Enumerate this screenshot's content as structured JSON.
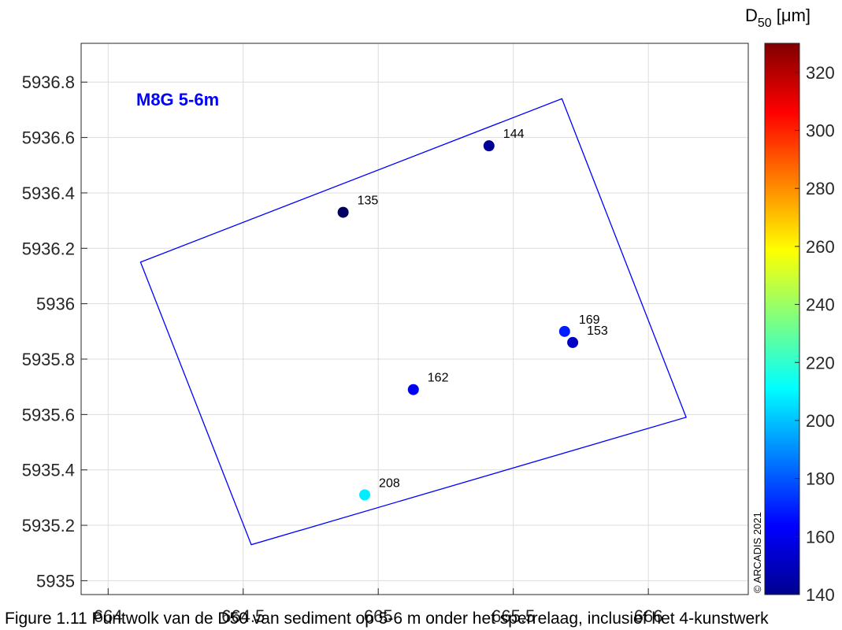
{
  "chart_data": {
    "type": "scatter",
    "title": "M8G 5-6m",
    "xlim": [
      663.9,
      666.37
    ],
    "ylim": [
      5934.95,
      5936.94
    ],
    "xticks": [
      664,
      664.5,
      665,
      665.5,
      666
    ],
    "yticks": [
      5935,
      5935.2,
      5935.4,
      5935.6,
      5935.8,
      5936,
      5936.2,
      5936.4,
      5936.6,
      5936.8
    ],
    "xtick_labels": [
      "664",
      "664.5",
      "665",
      "665.5",
      "666"
    ],
    "ytick_labels": [
      "5935",
      "5935.2",
      "5935.4",
      "5935.6",
      "5935.8",
      "5936",
      "5936.2",
      "5936.4",
      "5936.6",
      "5936.8"
    ],
    "grid": true,
    "polygon": [
      [
        664.12,
        5936.15
      ],
      [
        665.68,
        5936.74
      ],
      [
        666.14,
        5935.59
      ],
      [
        664.53,
        5935.13
      ]
    ],
    "points": [
      {
        "x": 665.41,
        "y": 5936.57,
        "value": 144,
        "label": "144"
      },
      {
        "x": 664.87,
        "y": 5936.33,
        "value": 135,
        "label": "135"
      },
      {
        "x": 665.69,
        "y": 5935.9,
        "value": 169,
        "label": "169"
      },
      {
        "x": 665.72,
        "y": 5935.86,
        "value": 153,
        "label": "153"
      },
      {
        "x": 665.13,
        "y": 5935.69,
        "value": 162,
        "label": "162"
      },
      {
        "x": 664.95,
        "y": 5935.31,
        "value": 208,
        "label": "208"
      }
    ],
    "colorbar": {
      "label": "D50 [μm]",
      "label_main": "D",
      "label_sub": "50",
      "label_units": " [μm]",
      "range": [
        140,
        330
      ],
      "ticks": [
        140,
        160,
        180,
        200,
        220,
        240,
        260,
        280,
        300,
        320
      ],
      "tick_labels": [
        "140",
        "160",
        "180",
        "200",
        "220",
        "240",
        "260",
        "280",
        "300",
        "320"
      ],
      "colormap": "jet"
    },
    "copyright": "© ARCADIS 2021",
    "colors": {
      "polygon": "#0000ff",
      "title": "#0000ff",
      "grid": "#dcdcdc"
    }
  },
  "caption": "Figure 1.11 Puntwolk van de D50 van sediment op 5-6 m onder het sperrelaag, inclusief het 4-kunstwerk"
}
